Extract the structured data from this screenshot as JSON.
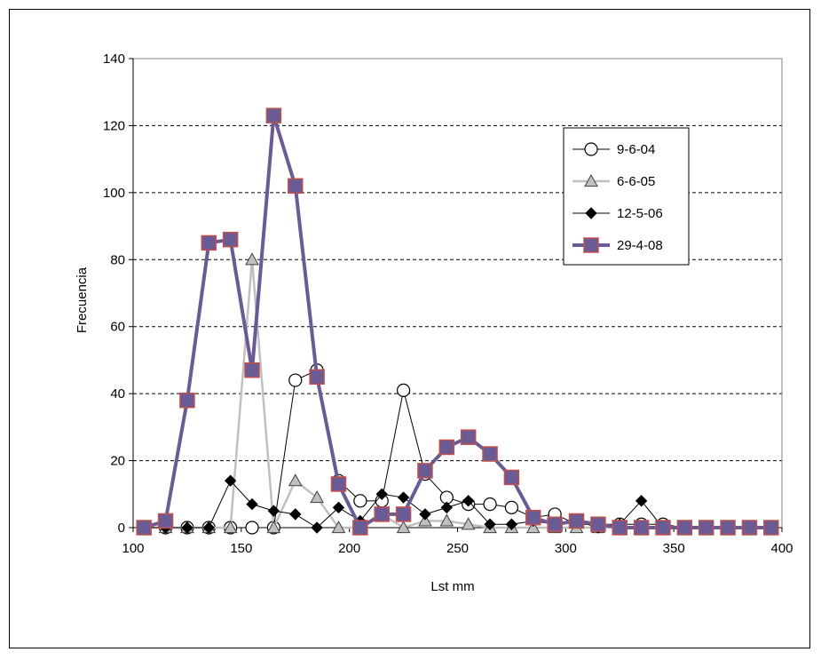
{
  "chart_data": {
    "type": "line",
    "xlabel": "Lst mm",
    "ylabel": "Frecuencia",
    "xlim": [
      100,
      400
    ],
    "ylim": [
      0,
      140
    ],
    "xticks": [
      100,
      150,
      200,
      250,
      300,
      350,
      400
    ],
    "yticks": [
      0,
      20,
      40,
      60,
      80,
      100,
      120,
      140
    ],
    "grid": "horizontal dashed",
    "legend_position": "top-right",
    "x": [
      105,
      115,
      125,
      135,
      145,
      155,
      165,
      175,
      185,
      195,
      205,
      215,
      225,
      235,
      245,
      255,
      265,
      275,
      285,
      295,
      305,
      315,
      325,
      335,
      345,
      355,
      365,
      375,
      385,
      395
    ],
    "series": [
      {
        "name": "9-6-04",
        "marker": "circle-open",
        "color": "#000000",
        "values": [
          0,
          0,
          0,
          0,
          0,
          0,
          0,
          44,
          47,
          14,
          8,
          8,
          41,
          16,
          9,
          7,
          7,
          6,
          3,
          4,
          1,
          1,
          1,
          1,
          1,
          0,
          0,
          0,
          0,
          0
        ]
      },
      {
        "name": "6-6-05",
        "marker": "triangle",
        "color": "#c0c0c0",
        "values": [
          0,
          0,
          0,
          0,
          0,
          80,
          0,
          14,
          9,
          0,
          0,
          4,
          0,
          2,
          2,
          1,
          0,
          0,
          0,
          0,
          0,
          0,
          0,
          0,
          0,
          0,
          0,
          0,
          0,
          0
        ]
      },
      {
        "name": "12-5-06",
        "marker": "diamond",
        "color": "#000000",
        "values": [
          0,
          0,
          0,
          0,
          14,
          7,
          5,
          4,
          0,
          6,
          2,
          10,
          9,
          4,
          6,
          8,
          1,
          1,
          2,
          1,
          2,
          0,
          1,
          8,
          0,
          0,
          0,
          0,
          0,
          0
        ]
      },
      {
        "name": "29-4-08",
        "marker": "square",
        "color": "#6b5b95",
        "values": [
          0,
          2,
          38,
          85,
          86,
          47,
          123,
          102,
          45,
          13,
          0,
          4,
          4,
          17,
          24,
          27,
          22,
          15,
          3,
          1,
          2,
          1,
          0,
          0,
          0,
          0,
          0,
          0,
          0,
          0
        ]
      }
    ]
  }
}
